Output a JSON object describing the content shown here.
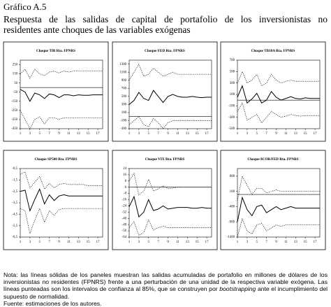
{
  "header": {
    "title": "Gráfico A.5",
    "subtitle": [
      "Respuesta de las salidas de capital de portafolio de los inversionistas no",
      "residentes ante choques de las variables exógenas"
    ]
  },
  "chart_data": [
    {
      "type": "line",
      "title": "Choque TIB Rta. FPNRS",
      "x": [
        1,
        2,
        3,
        4,
        5,
        6,
        7,
        8,
        9,
        10,
        11,
        12,
        13,
        14,
        15,
        16,
        17,
        18
      ],
      "xlim": [
        1,
        18
      ],
      "xticks": [
        1,
        3,
        5,
        7,
        9,
        11,
        13,
        15,
        17
      ],
      "ylim": [
        -450,
        300
      ],
      "yticks": [
        250,
        150,
        50,
        -50,
        -150,
        -250,
        -350,
        -450
      ],
      "series": [
        {
          "color": "#000",
          "style": "solid",
          "values": [
            -20,
            -50,
            -150,
            -60,
            -80,
            -120,
            -70,
            -80,
            -110,
            -80,
            -80,
            -90,
            -80,
            -85,
            -85,
            -80,
            -80,
            -80
          ]
        },
        {
          "color": "#000",
          "style": "dotted",
          "values": [
            150,
            200,
            100,
            200,
            150,
            130,
            170,
            180,
            160,
            180,
            170,
            180,
            180,
            180,
            180,
            180,
            180,
            180
          ]
        },
        {
          "color": "#000",
          "style": "dotted",
          "values": [
            -250,
            -350,
            -450,
            -350,
            -320,
            -400,
            -330,
            -330,
            -350,
            -330,
            -330,
            -330,
            -330,
            -330,
            -330,
            -330,
            -330,
            -330
          ]
        }
      ]
    },
    {
      "type": "line",
      "title": "Choque FED Rta. FPNRS",
      "x": [
        1,
        2,
        3,
        4,
        5,
        6,
        7,
        8,
        9,
        10,
        11,
        12,
        13,
        14,
        15,
        16,
        17,
        18
      ],
      "xlim": [
        1,
        18
      ],
      "xticks": [
        1,
        3,
        5,
        7,
        9,
        11,
        13,
        15,
        17
      ],
      "ylim": [
        -300,
        1400
      ],
      "yticks": [
        1300,
        1100,
        900,
        700,
        500,
        300,
        100,
        -100,
        -300
      ],
      "series": [
        {
          "color": "#000",
          "style": "solid",
          "values": [
            300,
            400,
            600,
            450,
            400,
            650,
            500,
            350,
            500,
            550,
            500,
            480,
            480,
            500,
            480,
            470,
            480,
            480
          ]
        },
        {
          "color": "#000",
          "style": "dotted",
          "values": [
            900,
            1100,
            1300,
            1000,
            1050,
            1200,
            1100,
            1000,
            1050,
            1100,
            1050,
            1050,
            1050,
            1050,
            1050,
            1050,
            1050,
            1050
          ]
        },
        {
          "color": "#000",
          "style": "dotted",
          "values": [
            -200,
            -100,
            0,
            -200,
            -250,
            -50,
            -150,
            -300,
            -150,
            -100,
            -100,
            -100,
            -100,
            -100,
            -100,
            -100,
            -100,
            -100
          ]
        }
      ]
    },
    {
      "type": "line",
      "title": "Choque TB10A Rta. FPNRS",
      "x": [
        1,
        2,
        3,
        4,
        5,
        6,
        7,
        8,
        9,
        10,
        11,
        12,
        13,
        14,
        15,
        16,
        17,
        18
      ],
      "xlim": [
        1,
        18
      ],
      "xticks": [
        1,
        3,
        5,
        7,
        9,
        11,
        13,
        15,
        17
      ],
      "ylim": [
        -500,
        700
      ],
      "yticks": [
        700,
        500,
        300,
        100,
        -100,
        -300,
        -500
      ],
      "series": [
        {
          "color": "#000",
          "style": "solid",
          "values": [
            50,
            250,
            -50,
            20,
            120,
            -50,
            0,
            150,
            50,
            0,
            30,
            60,
            30,
            20,
            40,
            30,
            30,
            30
          ]
        },
        {
          "color": "#000",
          "style": "dotted",
          "values": [
            300,
            500,
            300,
            350,
            450,
            250,
            300,
            450,
            350,
            300,
            330,
            350,
            330,
            330,
            330,
            330,
            330,
            330
          ]
        },
        {
          "color": "#000",
          "style": "dotted",
          "values": [
            -200,
            -50,
            -350,
            -300,
            -250,
            -400,
            -300,
            -200,
            -250,
            -300,
            -280,
            -250,
            -270,
            -280,
            -270,
            -270,
            -270,
            -270
          ]
        }
      ]
    },
    {
      "type": "line",
      "title": "Choque SP500 Rta. FPNRS",
      "x": [
        1,
        2,
        3,
        4,
        5,
        6,
        7,
        8,
        9,
        10,
        11,
        12,
        13,
        14,
        15,
        16,
        17,
        18
      ],
      "xlim": [
        1,
        18
      ],
      "xticks": [
        1,
        3,
        5,
        7,
        9,
        11,
        13,
        15,
        17
      ],
      "ylim": [
        -6.5,
        -0.5
      ],
      "yticks": [
        {
          "value": -0.5,
          "label": "-0,5"
        },
        {
          "value": -1.5,
          "label": "-1,5"
        },
        {
          "value": -2.5,
          "label": "-2,5"
        },
        {
          "value": -3.5,
          "label": "-3,5"
        },
        {
          "value": -4.5,
          "label": "-4,5"
        },
        {
          "value": -5.5,
          "label": "-5,5"
        },
        {
          "value": -6.5,
          "label": "-6,5"
        }
      ],
      "series": [
        {
          "color": "#000",
          "style": "solid",
          "values": [
            -2.5,
            -2.4,
            -4.2,
            -3.2,
            -2.3,
            -3.6,
            -2.8,
            -3.3,
            -2.9,
            -2.8,
            -2.9,
            -2.9,
            -2.9,
            -2.9,
            -2.9,
            -2.9,
            -2.9,
            -2.9
          ]
        },
        {
          "color": "#000",
          "style": "dotted",
          "values": [
            -1.0,
            -0.8,
            -2.2,
            -1.7,
            -1.2,
            -2.3,
            -1.8,
            -2.2,
            -1.9,
            -1.8,
            -1.9,
            -1.9,
            -1.9,
            -1.9,
            -2.0,
            -2.0,
            -2.0,
            -2.0
          ]
        },
        {
          "color": "#000",
          "style": "dotted",
          "values": [
            -4,
            -4.2,
            -6.2,
            -5,
            -4,
            -5.2,
            -4.2,
            -4.6,
            -4.1,
            -4,
            -4,
            -4,
            -4,
            -4,
            -4,
            -4,
            -4,
            -4
          ]
        }
      ]
    },
    {
      "type": "line",
      "title": "Choque VIX Rta. FPNRS",
      "x": [
        1,
        2,
        3,
        4,
        5,
        6,
        7,
        8,
        9,
        10,
        11,
        12,
        13,
        14,
        15,
        16,
        17,
        18
      ],
      "xlim": [
        1,
        18
      ],
      "xticks": [
        1,
        3,
        5,
        7,
        9,
        11,
        13,
        15,
        17
      ],
      "ylim": [
        -64,
        24
      ],
      "yticks": [
        24,
        16,
        8,
        0,
        -8,
        -16,
        -24,
        -32,
        -40,
        -48,
        -56,
        -64
      ],
      "series": [
        {
          "color": "#000",
          "style": "solid",
          "values": [
            -25,
            -12,
            -38,
            -32,
            -16,
            -30,
            -28,
            -24,
            -28,
            -27,
            -26,
            -26,
            -26,
            -27,
            -27,
            -26,
            -27,
            -27
          ]
        },
        {
          "color": "#000",
          "style": "dotted",
          "values": [
            8,
            18,
            -10,
            -5,
            10,
            -5,
            -2,
            2,
            -2,
            -1,
            0,
            0,
            0,
            0,
            0,
            0,
            0,
            0
          ]
        },
        {
          "color": "#000",
          "style": "dotted",
          "values": [
            -52,
            -44,
            -62,
            -58,
            -42,
            -55,
            -52,
            -50,
            -52,
            -52,
            -52,
            -52,
            -52,
            -52,
            -52,
            -52,
            -52,
            -52
          ]
        }
      ]
    },
    {
      "type": "line",
      "title": "Choque $COR/FED Rta. FPNRS",
      "x": [
        1,
        2,
        3,
        4,
        5,
        6,
        7,
        8,
        9,
        10,
        11,
        12,
        13,
        14,
        15,
        16,
        17,
        18
      ],
      "xlim": [
        1,
        18
      ],
      "xticks": [
        1,
        3,
        5,
        7,
        9,
        11,
        13,
        15,
        17
      ],
      "ylim": [
        -1400,
        850
      ],
      "yticks": [
        600,
        100,
        -400,
        -900,
        -1400
      ],
      "series": [
        {
          "color": "#000",
          "style": "solid",
          "values": [
            -900,
            -100,
            -500,
            -700,
            -400,
            -350,
            -600,
            -500,
            -400,
            -500,
            -450,
            -400,
            -450,
            -450,
            -450,
            -450,
            -450,
            -450
          ]
        },
        {
          "color": "#000",
          "style": "dotted",
          "values": [
            -200,
            600,
            300,
            0,
            200,
            200,
            50,
            100,
            150,
            100,
            100,
            100,
            100,
            100,
            100,
            100,
            100,
            100
          ]
        },
        {
          "color": "#000",
          "style": "dotted",
          "values": [
            -1400,
            -800,
            -1200,
            -1300,
            -1000,
            -950,
            -1200,
            -1100,
            -1000,
            -1050,
            -1000,
            -1000,
            -1000,
            -1000,
            -1000,
            -1000,
            -1000,
            -1000
          ]
        }
      ]
    }
  ],
  "note": {
    "before": "Nota: las líneas sólidas de los paneles muestran las salidas acumuladas de portafolio en millones de dólares de los inversionistas no residentes (FPNRS) frente a una perturbación de una unidad de la respectiva variable exógena. Las líneas punteadas son los intervalos de confianza al 85%, que se construyen por",
    "emphasis": "bootstrapping",
    "after": "ante el incumplimiento del supuesto de normalidad.",
    "source": "Fuente: estimaciones de los autores."
  }
}
